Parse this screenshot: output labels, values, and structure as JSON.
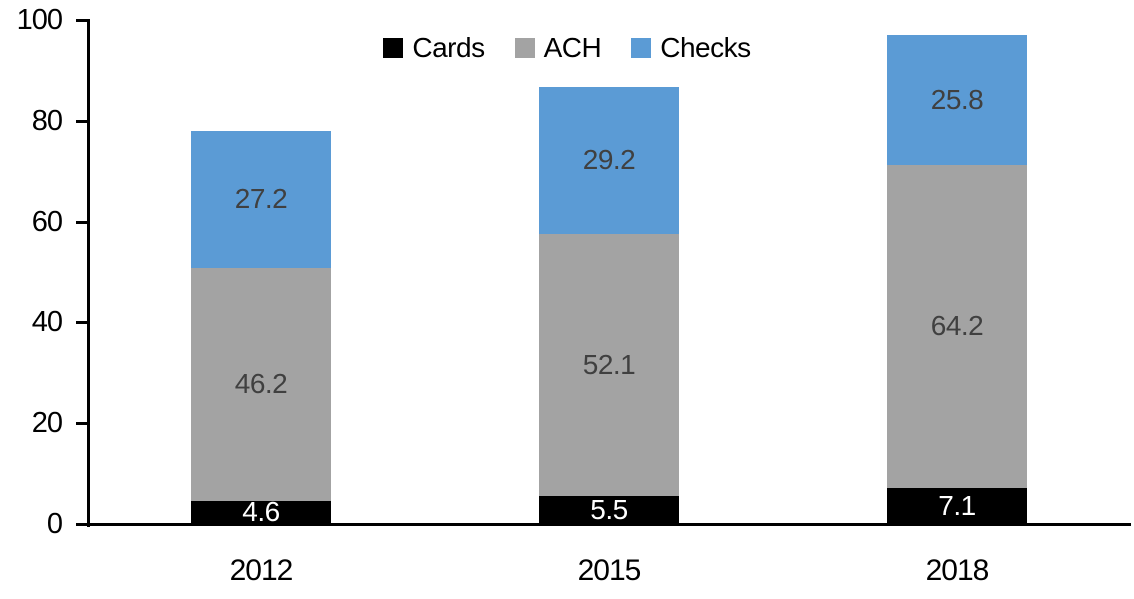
{
  "chart_data": {
    "type": "bar",
    "stacked": true,
    "categories": [
      "2012",
      "2015",
      "2018"
    ],
    "series": [
      {
        "name": "Cards",
        "color": "#000000",
        "label_color": "#ffffff",
        "values": [
          4.6,
          5.5,
          7.1
        ]
      },
      {
        "name": "ACH",
        "color": "#A3A3A3",
        "label_color": "#404040",
        "values": [
          46.2,
          52.1,
          64.2
        ]
      },
      {
        "name": "Checks",
        "color": "#5B9BD5",
        "label_color": "#404040",
        "values": [
          27.2,
          29.2,
          25.8
        ]
      }
    ],
    "ylim": [
      0,
      100
    ],
    "yticks": [
      0,
      20,
      40,
      60,
      80,
      100
    ],
    "legend_position": "top-center",
    "grid": false,
    "axis_color": "#000000",
    "background": "#ffffff"
  }
}
